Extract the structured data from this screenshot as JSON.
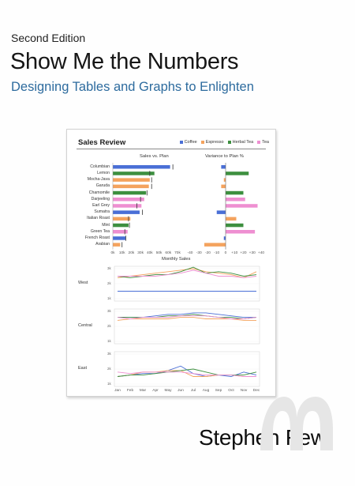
{
  "cover": {
    "edition": "Second Edition",
    "title": "Show Me the Numbers",
    "subtitle": "Designing Tables and Graphs to Enlighten",
    "author": "Stephen Few"
  },
  "colors": {
    "coffee": "#4a6fd6",
    "espresso": "#f4a35e",
    "herbal_tea": "#3d8f3f",
    "tea": "#ee8fd1",
    "subtitle": "#2d6b9e"
  },
  "panel": {
    "title": "Sales Review",
    "legend": [
      {
        "label": "Coffee",
        "color": "#4a6fd6"
      },
      {
        "label": "Espresso",
        "color": "#f4a35e"
      },
      {
        "label": "Herbal Tea",
        "color": "#3d8f3f"
      },
      {
        "label": "Tea",
        "color": "#ee8fd1"
      }
    ]
  },
  "chart_data": [
    {
      "type": "bar",
      "title": "Sales vs. Plan",
      "categories": [
        "Columbian",
        "Lemon",
        "Mocha-Java",
        "Garuda",
        "Chamomile",
        "Darjeeling",
        "Earl Grey",
        "Sumatra",
        "Italian Roast",
        "Mint",
        "Green Tea",
        "French Roast",
        "Arabian"
      ],
      "category_type": [
        "coffee",
        "herbal_tea",
        "espresso",
        "espresso",
        "herbal_tea",
        "tea",
        "tea",
        "coffee",
        "espresso",
        "herbal_tea",
        "tea",
        "coffee",
        "espresso"
      ],
      "values": [
        62,
        45,
        40,
        39,
        36,
        34,
        31,
        29,
        19,
        17,
        16,
        14,
        8
      ],
      "plan": [
        65,
        40,
        42,
        42,
        37,
        30,
        26,
        32,
        17,
        18,
        13,
        14,
        10
      ],
      "ticks": [
        "0k",
        "10k",
        "20k",
        "30k",
        "40k",
        "50k",
        "60k",
        "70k"
      ],
      "xlim": [
        0,
        70
      ]
    },
    {
      "type": "bar",
      "title": "Variance to Plan %",
      "categories": [
        "Columbian",
        "Lemon",
        "Mocha-Java",
        "Garuda",
        "Chamomile",
        "Darjeeling",
        "Earl Grey",
        "Sumatra",
        "Italian Roast",
        "Mint",
        "Green Tea",
        "French Roast",
        "Arabian"
      ],
      "values": [
        -5,
        26,
        -2,
        -5,
        20,
        22,
        36,
        -10,
        12,
        20,
        33,
        -2,
        -24
      ],
      "ticks": [
        "-40",
        "-30",
        "-20",
        "-10",
        "0",
        "+10",
        "+20",
        "+30",
        "+40"
      ],
      "xlim": [
        -40,
        40
      ]
    },
    {
      "type": "line",
      "title": "Monthly Sales",
      "x": [
        "Jan",
        "Feb",
        "Mar",
        "Apr",
        "May",
        "Jun",
        "Jul",
        "Aug",
        "Sep",
        "Oct",
        "Nov",
        "Dec"
      ],
      "panels": [
        {
          "region": "West",
          "yticks": [
            "3k",
            "2k",
            "1k"
          ],
          "ylim": [
            1,
            3
          ],
          "series": [
            {
              "color": "#4a6fd6",
              "values": [
                1.5,
                1.5,
                1.5,
                1.5,
                1.5,
                1.5,
                1.5,
                1.5,
                1.5,
                1.5,
                1.5,
                1.5
              ]
            },
            {
              "color": "#f4a35e",
              "values": [
                2.4,
                2.5,
                2.6,
                2.7,
                2.8,
                2.9,
                3.0,
                2.8,
                2.7,
                2.6,
                2.4,
                2.8
              ]
            },
            {
              "color": "#3d8f3f",
              "values": [
                2.5,
                2.4,
                2.5,
                2.6,
                2.6,
                2.8,
                3.1,
                2.7,
                2.8,
                2.7,
                2.5,
                2.6
              ]
            },
            {
              "color": "#ee8fd1",
              "values": [
                2.5,
                2.5,
                2.5,
                2.5,
                2.6,
                2.7,
                2.9,
                2.7,
                2.5,
                2.5,
                2.4,
                2.5
              ]
            }
          ]
        },
        {
          "region": "Central",
          "yticks": [
            "3k",
            "2k",
            "1k"
          ],
          "ylim": [
            1,
            3
          ],
          "series": [
            {
              "color": "#4a6fd6",
              "values": [
                2.6,
                2.6,
                2.6,
                2.7,
                2.8,
                2.8,
                2.9,
                2.9,
                2.8,
                2.7,
                2.6,
                2.6
              ]
            },
            {
              "color": "#f4a35e",
              "values": [
                2.4,
                2.5,
                2.5,
                2.5,
                2.5,
                2.6,
                2.6,
                2.5,
                2.5,
                2.5,
                2.4,
                2.4
              ]
            },
            {
              "color": "#3d8f3f",
              "values": [
                2.6,
                2.6,
                2.6,
                2.6,
                2.7,
                2.7,
                2.8,
                2.7,
                2.6,
                2.6,
                2.5,
                2.6
              ]
            },
            {
              "color": "#ee8fd1",
              "values": [
                2.6,
                2.5,
                2.6,
                2.6,
                2.6,
                2.7,
                2.7,
                2.7,
                2.6,
                2.5,
                2.5,
                2.6
              ]
            }
          ]
        },
        {
          "region": "East",
          "yticks": [
            "3k",
            "2k",
            "1k"
          ],
          "ylim": [
            1,
            3
          ],
          "series": [
            {
              "color": "#4a6fd6",
              "values": [
                1.5,
                1.6,
                1.7,
                1.7,
                1.9,
                2.2,
                1.7,
                1.5,
                1.6,
                1.5,
                1.8,
                1.6
              ]
            },
            {
              "color": "#f4a35e",
              "values": [
                1.5,
                1.6,
                1.8,
                1.8,
                1.9,
                1.9,
                1.5,
                1.5,
                1.6,
                1.6,
                1.5,
                1.5
              ]
            },
            {
              "color": "#3d8f3f",
              "values": [
                1.5,
                1.6,
                1.6,
                1.7,
                1.8,
                1.9,
                2.0,
                1.8,
                1.6,
                1.6,
                1.6,
                1.8
              ]
            },
            {
              "color": "#ee8fd1",
              "values": [
                1.8,
                1.7,
                1.8,
                1.8,
                1.8,
                1.8,
                1.7,
                1.6,
                1.6,
                1.6,
                1.5,
                1.5
              ]
            }
          ]
        }
      ]
    }
  ]
}
